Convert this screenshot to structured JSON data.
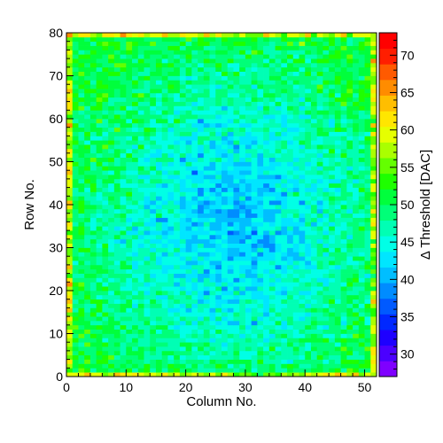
{
  "chart_data": {
    "type": "heatmap",
    "title": "",
    "xlabel": "Column No.",
    "ylabel": "Row No.",
    "zlabel": "Δ Threshold [DAC]",
    "xlim": [
      0,
      52
    ],
    "ylim": [
      0,
      80
    ],
    "zlim": [
      27,
      73
    ],
    "bins": {
      "columns": 52,
      "rows": 80
    },
    "x_ticks": [
      "0",
      "10",
      "20",
      "30",
      "40",
      "50"
    ],
    "y_ticks": [
      "0",
      "10",
      "20",
      "30",
      "40",
      "50",
      "60",
      "70",
      "80"
    ],
    "z_ticks": [
      "30",
      "35",
      "40",
      "45",
      "50",
      "55",
      "60",
      "65",
      "70"
    ],
    "pattern": {
      "edge_value": 51,
      "center_value": 40,
      "center": {
        "column": 28,
        "row": 36
      },
      "noise": 4
    },
    "palette": [
      "#7F00FF",
      "#4B00FF",
      "#1E00FF",
      "#0028FF",
      "#005AFF",
      "#008CFF",
      "#00BEFF",
      "#00E6FF",
      "#00FFE6",
      "#00FFB4",
      "#00FF78",
      "#00FF3C",
      "#1EFF00",
      "#64FF00",
      "#AAFF00",
      "#E6FF00",
      "#FFE600",
      "#FFBE00",
      "#FF8C00",
      "#FF5A00",
      "#FF1E00",
      "#FF0000"
    ]
  }
}
